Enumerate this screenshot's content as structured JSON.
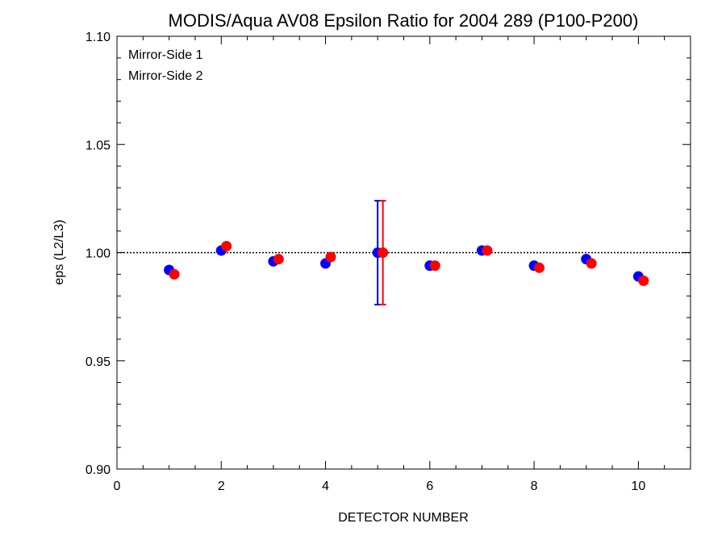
{
  "chart_data": {
    "type": "scatter",
    "title": "MODIS/Aqua AV08 Epsilon Ratio for 2004 289 (P100-P200)",
    "xlabel": "DETECTOR NUMBER",
    "ylabel": "eps (L2/L3)",
    "xlim": [
      0,
      11
    ],
    "ylim": [
      0.9,
      1.1
    ],
    "x_ticks": [
      0,
      2,
      4,
      6,
      8,
      10
    ],
    "x_tick_labels": [
      "0",
      "2",
      "4",
      "6",
      "8",
      "10"
    ],
    "y_ticks": [
      0.9,
      0.95,
      1.0,
      1.05,
      1.1
    ],
    "y_tick_labels": [
      "0.90",
      "0.95",
      "1.00",
      "1.05",
      "1.10"
    ],
    "reference_line": 1.0,
    "grid": false,
    "legend_position": "top-left",
    "series": [
      {
        "name": "Mirror-Side 1",
        "color": "#0000ff",
        "x": [
          1,
          2,
          3,
          4,
          5,
          6,
          7,
          8,
          9,
          10
        ],
        "y": [
          0.992,
          1.001,
          0.996,
          0.995,
          1.0,
          0.994,
          1.001,
          0.994,
          0.997,
          0.989
        ],
        "error_bar": {
          "x": 5,
          "low": 0.976,
          "high": 1.024
        }
      },
      {
        "name": "Mirror-Side 2",
        "color": "#ff0000",
        "x": [
          1.1,
          2.1,
          3.1,
          4.1,
          5.1,
          6.1,
          7.1,
          8.1,
          9.1,
          10.1
        ],
        "y": [
          0.99,
          1.003,
          0.997,
          0.998,
          1.0,
          0.994,
          1.001,
          0.993,
          0.995,
          0.987
        ],
        "error_bar": {
          "x": 5.1,
          "low": 0.976,
          "high": 1.024
        }
      }
    ]
  }
}
